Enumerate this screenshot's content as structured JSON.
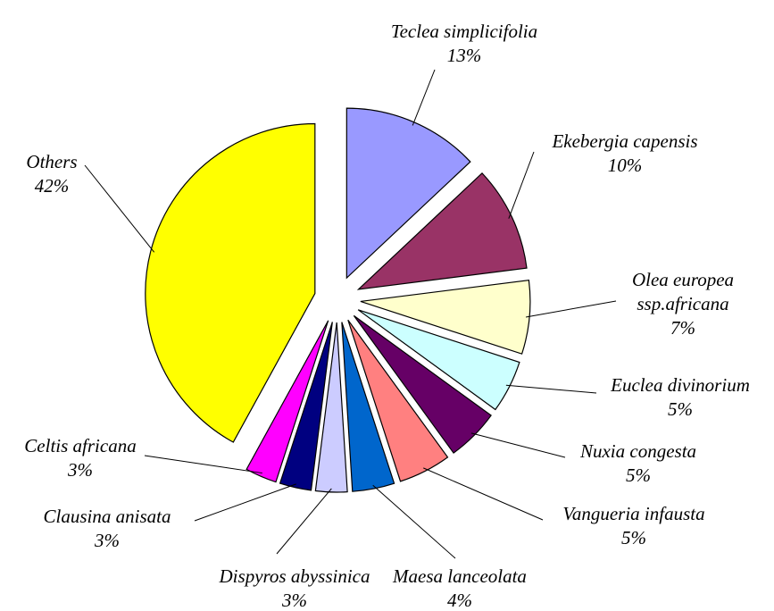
{
  "chart_data": {
    "type": "pie",
    "categories": [
      "Teclea simplicifolia",
      "Ekebergia capensis",
      "Olea europea ssp.africana",
      "Euclea divinorium",
      "Nuxia congesta",
      "Vangueria infausta",
      "Maesa lanceolata",
      "Dispyros abyssinica",
      "Clausina anisata",
      "Celtis africana",
      "Others"
    ],
    "values": [
      13,
      10,
      7,
      5,
      5,
      5,
      4,
      3,
      3,
      3,
      42
    ],
    "value_labels": [
      "13%",
      "10%",
      "7%",
      "5%",
      "5%",
      "5%",
      "4%",
      "3%",
      "3%",
      "3%",
      "42%"
    ],
    "colors": [
      "#9999ff",
      "#993366",
      "#ffffcc",
      "#ccffff",
      "#660066",
      "#ff8080",
      "#0066cc",
      "#ccccff",
      "#000080",
      "#ff00ff",
      "#ffff00"
    ]
  }
}
